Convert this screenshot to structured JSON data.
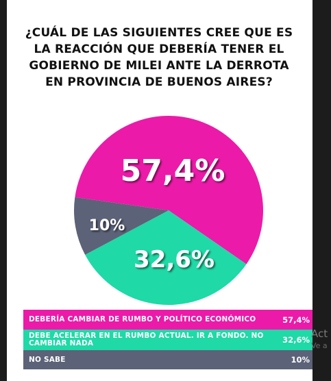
{
  "question": {
    "lines": [
      "¿CUÁL DE LAS SIGUIENTES CREE QUE ES",
      "LA REACCIÓN QUE DEBERÍA TENER EL",
      "GOBIERNO DE MILEI ANTE LA DERROTA",
      "EN PROVINCIA DE BUENOS AIRES?"
    ]
  },
  "chart_data": {
    "type": "pie",
    "title": "¿CUÁL DE LAS SIGUIENTES CREE QUE ES LA REACCIÓN QUE DEBERÍA TENER EL GOBIERNO DE MILEI ANTE LA DERROTA EN PROVINCIA DE BUENOS AIRES?",
    "slices": [
      {
        "label": "DEBERÍA CAMBIAR DE RUMBO Y POLÍTICO ECONÓMICO",
        "value": 57.4,
        "display": "57,4%",
        "color": "#ec1aa8"
      },
      {
        "label": "DEBE ACELERAR EN EL RUMBO ACTUAL. IR A FONDO. NO CAMBIAR NADA",
        "value": 32.6,
        "display": "32,6%",
        "color": "#1fd9a6"
      },
      {
        "label": "NO SABE",
        "value": 10,
        "display": "10%",
        "color": "#5c6277"
      }
    ],
    "legend_position": "bottom"
  },
  "overlay_text": {
    "line1": "Act",
    "line2": "Ve a"
  }
}
